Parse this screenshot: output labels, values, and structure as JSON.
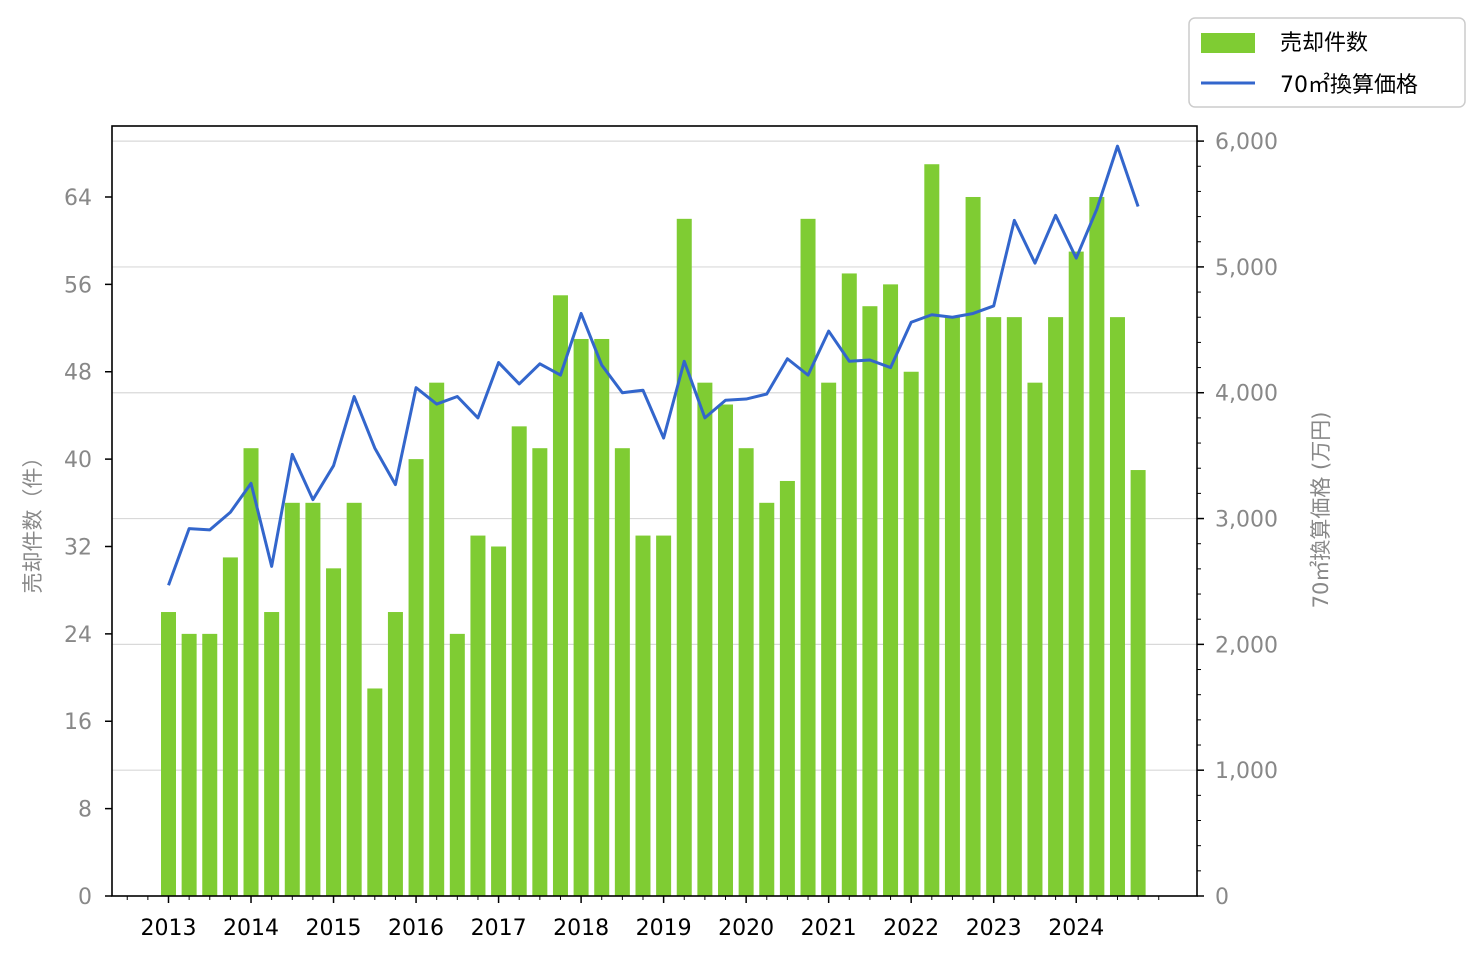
{
  "chart_data": {
    "type": "bar",
    "x_ticks": [
      "2013",
      "2014",
      "2015",
      "2016",
      "2017",
      "2018",
      "2019",
      "2020",
      "2021",
      "2022",
      "2023",
      "2024"
    ],
    "ylabel_left": "売却件数（件）",
    "ylabel_right": "70㎡換算価格 (万円)",
    "left_ylim": [
      0,
      70.5
    ],
    "left_ticks": [
      "0",
      "8",
      "16",
      "24",
      "32",
      "40",
      "48",
      "56",
      "64"
    ],
    "right_ylim": [
      0,
      6120
    ],
    "right_ticks": [
      "0",
      "1,000",
      "2,000",
      "3,000",
      "4,000",
      "5,000",
      "6,000"
    ],
    "grid": "horizontal, right axis",
    "legend_position": "top-right, outside",
    "colors": {
      "bar": "#7fcc33",
      "line": "#3366cc"
    },
    "periods": [
      "2013Q1",
      "2013Q2",
      "2013Q3",
      "2013Q4",
      "2014Q1",
      "2014Q2",
      "2014Q3",
      "2014Q4",
      "2015Q1",
      "2015Q2",
      "2015Q3",
      "2015Q4",
      "2016Q1",
      "2016Q2",
      "2016Q3",
      "2016Q4",
      "2017Q1",
      "2017Q2",
      "2017Q3",
      "2017Q4",
      "2018Q1",
      "2018Q2",
      "2018Q3",
      "2018Q4",
      "2019Q1",
      "2019Q2",
      "2019Q3",
      "2019Q4",
      "2020Q1",
      "2020Q2",
      "2020Q3",
      "2020Q4",
      "2021Q1",
      "2021Q2",
      "2021Q3",
      "2021Q4",
      "2022Q1",
      "2022Q2",
      "2022Q3",
      "2022Q4",
      "2023Q1",
      "2023Q2",
      "2023Q3",
      "2023Q4",
      "2024Q1",
      "2024Q2",
      "2024Q3",
      "2024Q4"
    ],
    "series": [
      {
        "name": "売却件数",
        "type": "bar",
        "axis": "left",
        "values": [
          26,
          24,
          24,
          31,
          41,
          26,
          36,
          36,
          30,
          36,
          19,
          26,
          40,
          47,
          24,
          33,
          32,
          43,
          41,
          55,
          51,
          51,
          41,
          33,
          33,
          62,
          47,
          45,
          41,
          36,
          38,
          62,
          47,
          57,
          54,
          56,
          48,
          67,
          53,
          64,
          53,
          53,
          47,
          53,
          59,
          64,
          53,
          39
        ]
      },
      {
        "name": "70㎡換算価格",
        "type": "line",
        "axis": "right",
        "values": [
          2470,
          2920,
          2910,
          3050,
          3280,
          2620,
          3510,
          3150,
          3420,
          3970,
          3560,
          3270,
          4040,
          3910,
          3970,
          3800,
          4240,
          4070,
          4230,
          4140,
          4630,
          4220,
          4000,
          4020,
          3640,
          4250,
          3800,
          3940,
          3950,
          3990,
          4270,
          4140,
          4490,
          4250,
          4260,
          4200,
          4560,
          4620,
          4600,
          4630,
          4690,
          5370,
          5030,
          5410,
          5070,
          5460,
          5960,
          5480
        ]
      }
    ]
  }
}
